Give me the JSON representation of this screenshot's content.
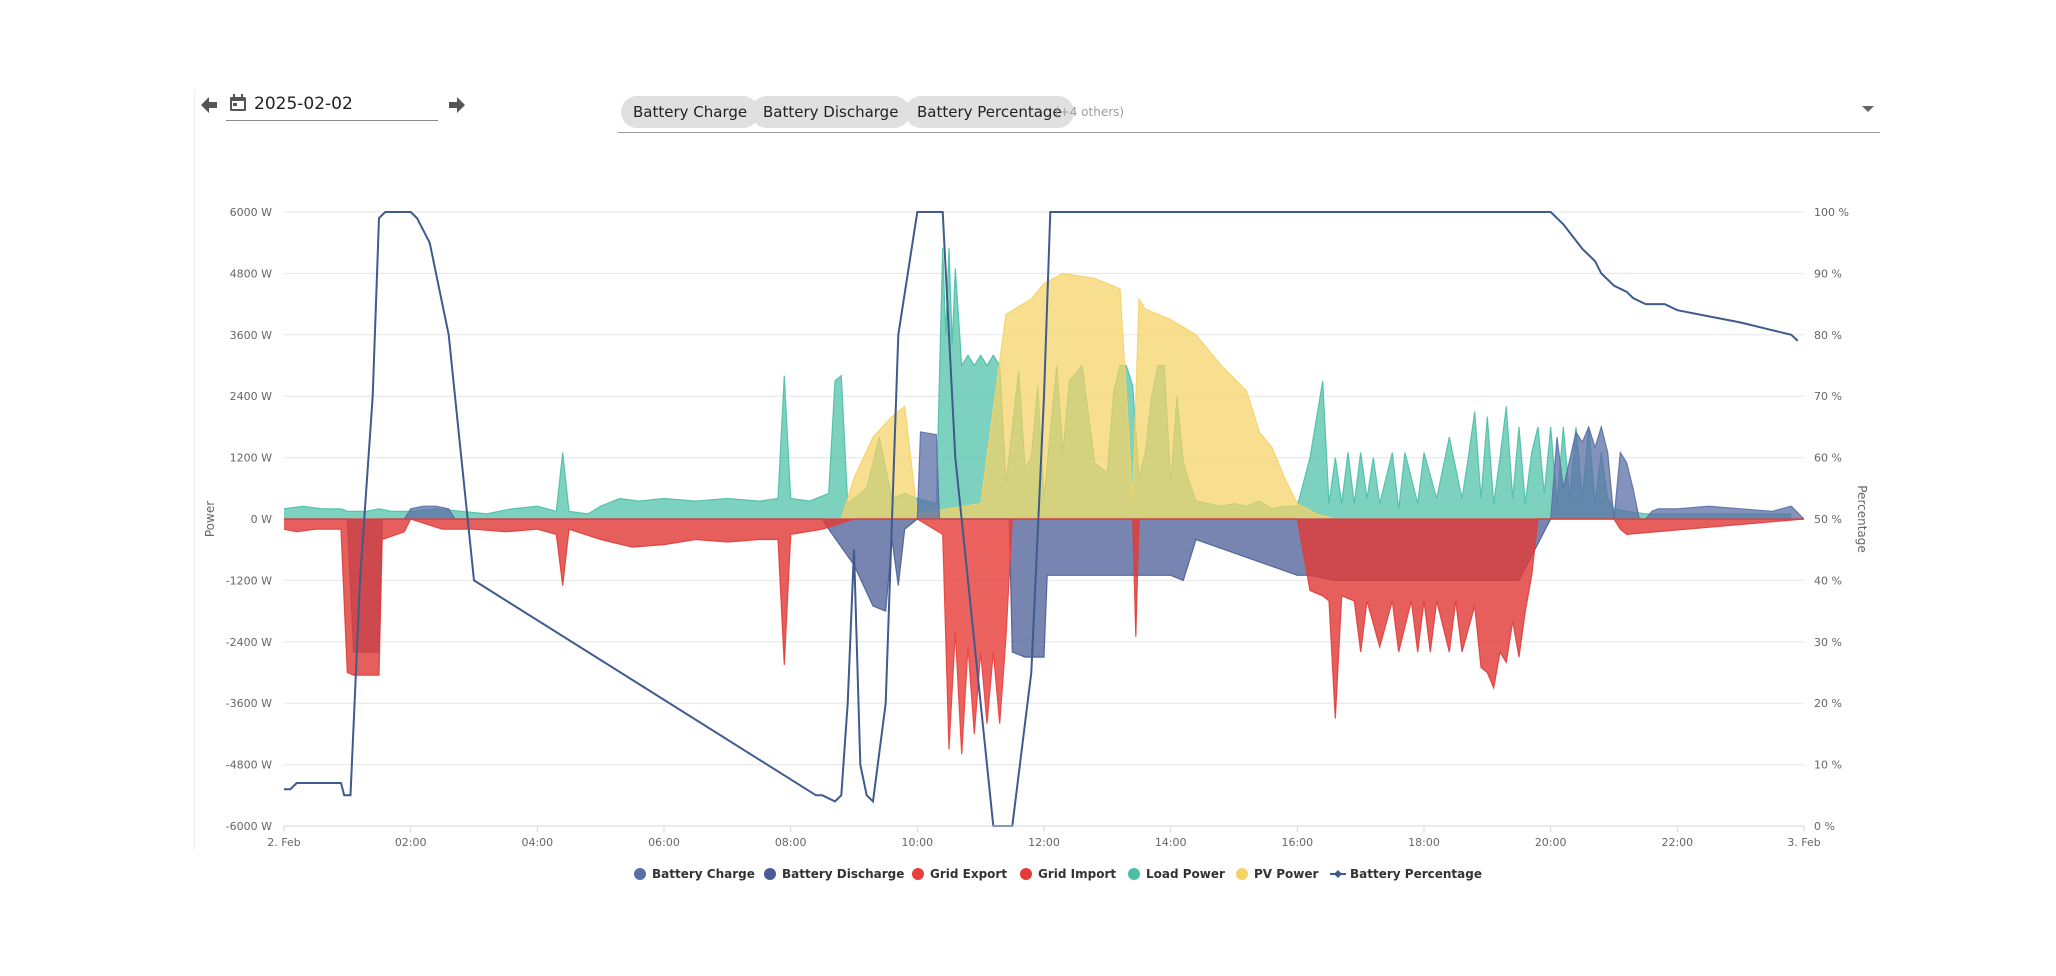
{
  "toolbar": {
    "date_value": "2025-02-02",
    "prev_icon": "arrow-left-icon",
    "next_icon": "arrow-right-icon",
    "calendar_icon": "calendar-icon",
    "selected_series": [
      "Battery Charge",
      "Battery Discharge",
      "Battery Percentage"
    ],
    "others_text": "(+4 others)",
    "dropdown_icon": "caret-down-icon"
  },
  "chart_data": {
    "type": "area",
    "title": "",
    "xlabel": "",
    "ylabel": "Power",
    "y2label": "Percentage",
    "ylim": [
      -6000,
      6000
    ],
    "y2lim": [
      0,
      100
    ],
    "xlim": [
      0,
      24
    ],
    "y_ticks": [
      6000,
      4800,
      3600,
      2400,
      1200,
      0,
      -1200,
      -2400,
      -3600,
      -4800,
      -6000
    ],
    "y_tick_labels": [
      "6000 W",
      "4800 W",
      "3600 W",
      "2400 W",
      "1200 W",
      "0 W",
      "-1200 W",
      "-2400 W",
      "-3600 W",
      "-4800 W",
      "-6000 W"
    ],
    "y2_ticks": [
      100,
      90,
      80,
      70,
      60,
      50,
      40,
      30,
      20,
      10,
      0
    ],
    "y2_tick_labels": [
      "100 %",
      "90 %",
      "80 %",
      "70 %",
      "60 %",
      "50 %",
      "40 %",
      "30 %",
      "20 %",
      "10 %",
      "0 %"
    ],
    "x_ticks": [
      0,
      2,
      4,
      6,
      8,
      10,
      12,
      14,
      16,
      18,
      20,
      22,
      24
    ],
    "x_tick_labels": [
      "2. Feb",
      "02:00",
      "04:00",
      "06:00",
      "08:00",
      "10:00",
      "12:00",
      "14:00",
      "16:00",
      "18:00",
      "20:00",
      "22:00",
      "3. Feb"
    ],
    "grid": true,
    "legend_position": "bottom-center",
    "colors": {
      "Battery Charge": "#5b6fa6",
      "Battery Discharge": "#4a5c96",
      "Grid Export": "#e8403c",
      "Grid Import": "#e03c38",
      "Load Power": "#4bbfa6",
      "PV Power": "#f5d265",
      "Battery Percentage": "#3f5a8c"
    },
    "series": [
      {
        "name": "Load Power",
        "axis": "power",
        "kind": "area",
        "x": [
          0,
          0.3,
          0.6,
          0.9,
          1.0,
          1.3,
          1.5,
          1.7,
          2.0,
          2.4,
          2.8,
          3.2,
          3.6,
          4.0,
          4.3,
          4.4,
          4.5,
          4.8,
          5.0,
          5.3,
          5.6,
          6.0,
          6.5,
          7.0,
          7.5,
          7.8,
          7.9,
          8.0,
          8.3,
          8.6,
          8.7,
          8.8,
          8.9,
          9.0,
          9.2,
          9.4,
          9.6,
          9.8,
          10.0,
          10.3,
          10.4,
          10.45,
          10.5,
          10.55,
          10.6,
          10.7,
          10.8,
          10.9,
          11.0,
          11.1,
          11.2,
          11.3,
          11.4,
          11.5,
          11.6,
          11.7,
          11.8,
          11.9,
          12.0,
          12.1,
          12.2,
          12.3,
          12.4,
          12.6,
          12.8,
          13.0,
          13.1,
          13.2,
          13.3,
          13.4,
          13.5,
          13.6,
          13.7,
          13.8,
          13.9,
          14.0,
          14.1,
          14.2,
          14.3,
          14.4,
          14.6,
          14.8,
          15.0,
          15.2,
          15.4,
          15.6,
          15.8,
          16.0,
          16.2,
          16.4,
          16.5,
          16.6,
          16.7,
          16.8,
          16.9,
          17.0,
          17.1,
          17.2,
          17.3,
          17.5,
          17.6,
          17.7,
          17.9,
          18.0,
          18.2,
          18.4,
          18.6,
          18.7,
          18.8,
          18.9,
          19.0,
          19.1,
          19.2,
          19.3,
          19.4,
          19.5,
          19.6,
          19.7,
          19.8,
          19.9,
          20.0,
          20.1,
          20.2,
          20.3,
          20.4,
          20.5,
          20.6,
          20.7,
          20.8,
          20.9,
          21.0,
          21.2,
          21.5,
          22.0,
          22.5,
          23.0,
          23.5,
          23.8
        ],
        "values": [
          200,
          250,
          200,
          200,
          150,
          150,
          200,
          150,
          150,
          200,
          150,
          100,
          200,
          250,
          150,
          1300,
          150,
          100,
          250,
          400,
          350,
          400,
          350,
          400,
          350,
          400,
          2800,
          400,
          350,
          500,
          2700,
          2800,
          300,
          400,
          600,
          1600,
          400,
          500,
          400,
          300,
          5300,
          3600,
          5300,
          3400,
          4900,
          3000,
          3200,
          3000,
          3200,
          3000,
          3200,
          3000,
          700,
          1800,
          2900,
          1000,
          1200,
          2600,
          400,
          1700,
          3000,
          1300,
          2700,
          3000,
          1100,
          900,
          2500,
          3000,
          3000,
          2600,
          800,
          1300,
          2400,
          3000,
          3000,
          700,
          2400,
          1100,
          700,
          350,
          300,
          250,
          300,
          250,
          350,
          200,
          250,
          250,
          1200,
          2700,
          300,
          1200,
          300,
          1300,
          300,
          1300,
          400,
          1200,
          300,
          1300,
          200,
          1300,
          300,
          1300,
          400,
          1600,
          400,
          1200,
          2100,
          400,
          2000,
          300,
          1200,
          2200,
          400,
          1800,
          300,
          1300,
          1800,
          500,
          1800,
          300,
          1800,
          400,
          1800,
          400,
          1800,
          300,
          1300,
          400,
          200,
          150,
          100,
          100,
          100,
          100,
          100,
          100
        ]
      },
      {
        "name": "PV Power",
        "axis": "power",
        "kind": "area",
        "x": [
          0,
          8.8,
          9.0,
          9.3,
          9.6,
          9.8,
          10.0,
          10.5,
          11.0,
          11.4,
          11.8,
          12.0,
          12.3,
          12.8,
          13.2,
          13.4,
          13.5,
          13.6,
          14.0,
          14.4,
          14.8,
          15.2,
          15.4,
          15.6,
          15.8,
          16.0,
          16.3,
          16.6,
          24
        ],
        "values": [
          0,
          0,
          800,
          1600,
          2000,
          2200,
          100,
          200,
          300,
          4000,
          4300,
          4600,
          4800,
          4700,
          4500,
          400,
          4300,
          4100,
          3900,
          3600,
          3000,
          2500,
          1700,
          1400,
          800,
          300,
          100,
          0,
          0
        ]
      },
      {
        "name": "Battery Charge",
        "axis": "power",
        "kind": "area",
        "x": [
          0,
          1.9,
          2.0,
          2.2,
          2.4,
          2.6,
          2.7,
          10.0,
          10.05,
          10.3,
          10.35,
          10.5,
          10.55,
          20.0,
          20.1,
          20.2,
          20.4,
          20.5,
          20.6,
          20.7,
          20.8,
          20.9,
          21.0,
          21.1,
          21.2,
          21.3,
          21.4,
          21.5,
          21.6,
          21.7,
          21.8,
          22.0,
          22.5,
          23.0,
          23.5,
          23.8,
          24
        ],
        "values": [
          0,
          0,
          200,
          250,
          250,
          200,
          0,
          0,
          1700,
          1650,
          0,
          0,
          0,
          0,
          1600,
          600,
          1700,
          1500,
          1800,
          1400,
          1800,
          1300,
          0,
          1300,
          1100,
          600,
          0,
          0,
          150,
          200,
          200,
          200,
          250,
          200,
          150,
          250,
          0
        ]
      },
      {
        "name": "Battery Discharge",
        "axis": "power",
        "kind": "area",
        "x": [
          0,
          1.0,
          1.1,
          1.5,
          1.55,
          8.5,
          8.6,
          9.0,
          9.3,
          9.5,
          9.6,
          9.7,
          9.8,
          10.0,
          11.45,
          11.5,
          11.7,
          12.0,
          12.05,
          14.0,
          14.2,
          14.4,
          16.0,
          16.2,
          16.6,
          17.0,
          19.5,
          20.0,
          24
        ],
        "values": [
          0,
          0,
          -2600,
          -2600,
          0,
          0,
          -200,
          -900,
          -1700,
          -1800,
          -400,
          -1300,
          -200,
          0,
          0,
          -2600,
          -2700,
          -2700,
          -1100,
          -1100,
          -1200,
          -400,
          -1100,
          -1100,
          -1200,
          -1200,
          -1200,
          0,
          0
        ]
      },
      {
        "name": "Grid Export",
        "axis": "power",
        "kind": "area",
        "x": [
          0,
          10.0,
          10.4,
          10.5,
          10.6,
          10.7,
          10.8,
          10.9,
          11.0,
          11.1,
          11.2,
          11.3,
          11.4,
          11.5,
          24
        ],
        "values": [
          0,
          0,
          -300,
          -4500,
          -2200,
          -4600,
          -2500,
          -4200,
          -2600,
          -4000,
          -2600,
          -4000,
          -2300,
          0,
          0
        ]
      },
      {
        "name": "Grid Import",
        "axis": "power",
        "kind": "area",
        "x": [
          0,
          0.2,
          0.5,
          0.9,
          1.0,
          1.1,
          1.5,
          1.55,
          1.9,
          2.0,
          2.5,
          3.0,
          3.5,
          4.0,
          4.3,
          4.4,
          4.5,
          5.0,
          5.5,
          6.0,
          6.5,
          7.0,
          7.5,
          7.8,
          7.9,
          8.0,
          8.5,
          9.0,
          13.4,
          13.45,
          13.5,
          16.0,
          16.2,
          16.4,
          16.5,
          16.6,
          16.7,
          16.9,
          17.0,
          17.1,
          17.3,
          17.5,
          17.6,
          17.8,
          17.9,
          18.0,
          18.1,
          18.2,
          18.4,
          18.5,
          18.6,
          18.8,
          18.9,
          19.0,
          19.1,
          19.2,
          19.3,
          19.4,
          19.5,
          19.6,
          19.7,
          19.8,
          21.0,
          21.1,
          21.2,
          24
        ],
        "values": [
          -200,
          -250,
          -200,
          -200,
          -3000,
          -3050,
          -3050,
          -400,
          -250,
          0,
          -200,
          -200,
          -250,
          -200,
          -300,
          -1300,
          -200,
          -400,
          -550,
          -500,
          -400,
          -450,
          -400,
          -400,
          -2850,
          -300,
          -200,
          0,
          0,
          -2300,
          0,
          0,
          -1400,
          -1500,
          -1600,
          -3900,
          -1500,
          -1600,
          -2600,
          -1600,
          -2500,
          -1600,
          -2600,
          -1600,
          -2600,
          -1600,
          -2600,
          -1600,
          -2600,
          -1600,
          -2600,
          -1700,
          -2900,
          -3000,
          -3300,
          -2600,
          -2800,
          -2000,
          -2700,
          -1800,
          -1100,
          0,
          0,
          -200,
          -300,
          0
        ]
      },
      {
        "name": "Battery Percentage",
        "axis": "percent",
        "kind": "line",
        "x": [
          0,
          0.1,
          0.2,
          0.9,
          0.95,
          1.0,
          1.05,
          1.2,
          1.4,
          1.5,
          1.6,
          2.0,
          2.1,
          2.3,
          2.6,
          2.8,
          3.0,
          8.4,
          8.5,
          8.7,
          8.8,
          8.9,
          9.0,
          9.1,
          9.2,
          9.3,
          9.5,
          9.6,
          9.7,
          10.0,
          10.2,
          10.4,
          10.6,
          11.2,
          11.5,
          11.8,
          12.0,
          12.1,
          15.0,
          18.0,
          20.0,
          20.2,
          20.5,
          20.7,
          20.8,
          21.0,
          21.2,
          21.3,
          21.5,
          21.8,
          22.0,
          22.5,
          23.0,
          23.4,
          23.8,
          23.9
        ],
        "values": [
          6,
          6,
          7,
          7,
          5,
          5,
          5,
          40,
          70,
          99,
          100,
          100,
          99,
          95,
          80,
          60,
          40,
          5,
          5,
          4,
          5,
          20,
          45,
          10,
          5,
          4,
          20,
          50,
          80,
          100,
          100,
          100,
          60,
          0,
          0,
          25,
          70,
          100,
          100,
          100,
          100,
          98,
          94,
          92,
          90,
          88,
          87,
          86,
          85,
          85,
          84,
          83,
          82,
          81,
          80,
          79
        ]
      }
    ],
    "legend": [
      {
        "name": "Battery Charge",
        "marker": "circle"
      },
      {
        "name": "Battery Discharge",
        "marker": "circle"
      },
      {
        "name": "Grid Export",
        "marker": "circle"
      },
      {
        "name": "Grid Import",
        "marker": "circle"
      },
      {
        "name": "Load Power",
        "marker": "circle"
      },
      {
        "name": "PV Power",
        "marker": "circle"
      },
      {
        "name": "Battery Percentage",
        "marker": "line-diamond"
      }
    ]
  }
}
